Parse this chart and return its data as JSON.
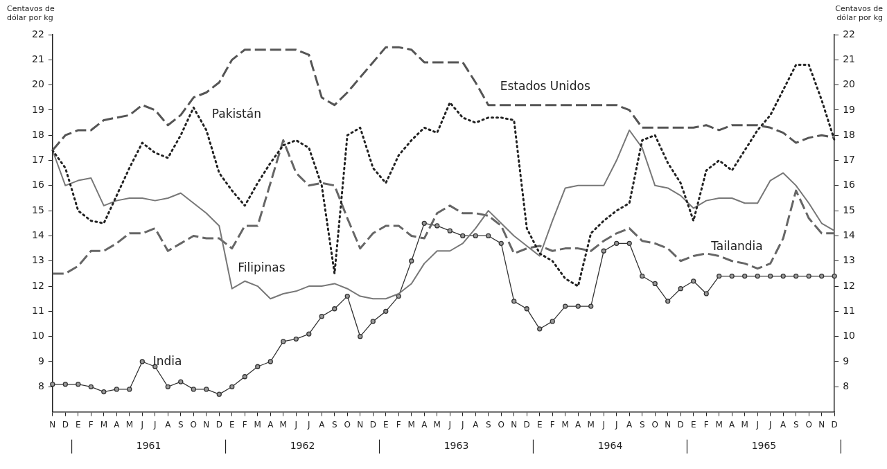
{
  "chart_data": {
    "type": "line",
    "ylabel": "Centavos de dólar por kg",
    "y2label": "Centavos de dólar por kg",
    "categories": [
      "N",
      "D",
      "E",
      "F",
      "M",
      "A",
      "M",
      "J",
      "J",
      "A",
      "S",
      "O",
      "N",
      "D",
      "E",
      "F",
      "M",
      "A",
      "M",
      "J",
      "J",
      "A",
      "S",
      "O",
      "N",
      "D",
      "E",
      "F",
      "M",
      "A",
      "M",
      "J",
      "J",
      "A",
      "S",
      "O",
      "N",
      "D",
      "E",
      "F",
      "M",
      "A",
      "M",
      "J",
      "J",
      "A",
      "S",
      "O",
      "N",
      "D",
      "E",
      "F",
      "M",
      "A",
      "M",
      "J",
      "J",
      "A",
      "S",
      "O",
      "N",
      "D"
    ],
    "ylim": [
      7,
      22
    ],
    "yticks": [
      8,
      9,
      10,
      11,
      12,
      13,
      14,
      15,
      16,
      17,
      18,
      19,
      20,
      21,
      22
    ],
    "y2lim": [
      7,
      22
    ],
    "y2ticks": [
      8,
      9,
      10,
      11,
      12,
      13,
      14,
      15,
      16,
      17,
      18,
      19,
      20,
      21,
      22
    ],
    "grid": false,
    "legend": false,
    "annotations": [
      "1961",
      "1962",
      "1963",
      "1964",
      "1965"
    ],
    "series": [
      {
        "name": "Estados Unidos",
        "color": "#555555",
        "line_style": "dashed",
        "marker": "none",
        "values": [
          17.4,
          18.0,
          18.2,
          18.2,
          18.6,
          18.7,
          18.8,
          19.2,
          19.0,
          18.4,
          18.8,
          19.5,
          19.7,
          20.1,
          21.0,
          21.4,
          21.4,
          21.4,
          21.4,
          21.4,
          21.2,
          19.5,
          19.2,
          19.7,
          20.3,
          20.9,
          21.5,
          21.5,
          21.4,
          20.9,
          20.9,
          20.9,
          20.9,
          20.1,
          19.2,
          19.2,
          19.2,
          19.2,
          19.2,
          19.2,
          19.2,
          19.2,
          19.2,
          19.2,
          19.2,
          19.0,
          18.3,
          18.3,
          18.3,
          18.3,
          18.3,
          18.4,
          18.2,
          18.4,
          18.4,
          18.4,
          18.3,
          18.1,
          17.7,
          17.9,
          18.0,
          17.9
        ]
      },
      {
        "name": "Pakistán",
        "color": "#222222",
        "line_style": "dotted",
        "marker": "none",
        "values": [
          17.4,
          16.7,
          15.0,
          14.6,
          14.5,
          15.6,
          16.7,
          17.7,
          17.3,
          17.1,
          18.0,
          19.1,
          18.2,
          16.5,
          15.8,
          15.2,
          16.1,
          16.9,
          17.6,
          17.8,
          17.5,
          16.0,
          12.5,
          18.0,
          18.3,
          16.7,
          16.1,
          17.2,
          17.8,
          18.3,
          18.1,
          19.3,
          18.7,
          18.5,
          18.7,
          18.7,
          18.6,
          14.3,
          13.3,
          13.0,
          12.3,
          12.0,
          14.1,
          14.6,
          15.0,
          15.3,
          17.8,
          18.0,
          16.9,
          16.1,
          14.6,
          16.6,
          17.0,
          16.6,
          17.4,
          18.2,
          18.8,
          19.8,
          20.8,
          20.8,
          19.4,
          17.8
        ]
      },
      {
        "name": "Filipinas",
        "color": "#777777",
        "line_style": "solid",
        "marker": "none",
        "values": [
          17.4,
          16.0,
          16.2,
          16.3,
          15.2,
          15.4,
          15.5,
          15.5,
          15.4,
          15.5,
          15.7,
          15.3,
          14.9,
          14.4,
          11.9,
          12.2,
          12.0,
          11.5,
          11.7,
          11.8,
          12.0,
          12.0,
          12.1,
          11.9,
          11.6,
          11.5,
          11.5,
          11.7,
          12.1,
          12.9,
          13.4,
          13.4,
          13.7,
          14.3,
          15.0,
          14.5,
          14.0,
          13.6,
          13.2,
          14.6,
          15.9,
          16.0,
          16.0,
          16.0,
          17.0,
          18.2,
          17.5,
          16.0,
          15.9,
          15.6,
          15.1,
          15.4,
          15.5,
          15.5,
          15.3,
          15.3,
          16.2,
          16.5,
          16.0,
          15.3,
          14.5,
          14.2
        ]
      },
      {
        "name": "Tailandia",
        "color": "#666666",
        "line_style": "dashed",
        "marker": "none",
        "values": [
          12.5,
          12.5,
          12.8,
          13.4,
          13.4,
          13.7,
          14.1,
          14.1,
          14.3,
          13.4,
          13.7,
          14.0,
          13.9,
          13.9,
          13.5,
          14.4,
          14.4,
          16.1,
          17.8,
          16.5,
          16.0,
          16.1,
          16.0,
          14.7,
          13.5,
          14.1,
          14.4,
          14.4,
          14.0,
          13.9,
          14.9,
          15.2,
          14.9,
          14.9,
          14.8,
          14.4,
          13.3,
          13.5,
          13.6,
          13.4,
          13.5,
          13.5,
          13.4,
          13.8,
          14.1,
          14.3,
          13.8,
          13.7,
          13.5,
          13.0,
          13.2,
          13.3,
          13.2,
          13.0,
          12.9,
          12.7,
          12.9,
          13.9,
          15.8,
          14.7,
          14.1,
          14.1
        ]
      },
      {
        "name": "India",
        "color": "#333333",
        "line_style": "solid",
        "marker": "circle",
        "values": [
          8.1,
          8.1,
          8.1,
          8.0,
          7.8,
          7.9,
          7.9,
          9.0,
          8.8,
          8.0,
          8.2,
          7.9,
          7.9,
          7.7,
          8.0,
          8.4,
          8.8,
          9.0,
          9.8,
          9.9,
          10.1,
          10.8,
          11.1,
          11.6,
          10.0,
          10.6,
          11.0,
          11.6,
          13.0,
          14.5,
          14.4,
          14.2,
          14.0,
          14.0,
          14.0,
          13.7,
          11.4,
          11.1,
          10.3,
          10.6,
          11.2,
          11.2,
          11.2,
          13.4,
          13.7,
          13.7,
          12.4,
          12.1,
          11.4,
          11.9,
          12.2,
          11.7,
          12.4,
          12.4,
          12.4,
          12.4,
          12.4,
          12.4,
          12.4,
          12.4,
          12.4,
          12.4
        ]
      }
    ]
  }
}
